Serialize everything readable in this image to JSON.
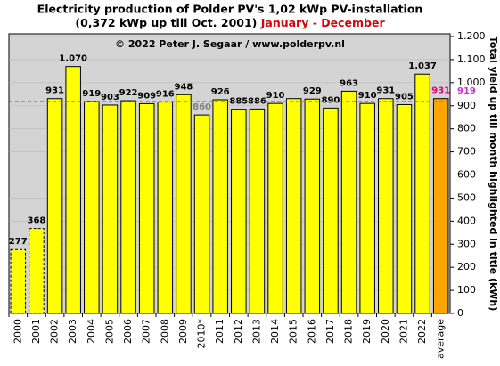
{
  "chart_data": {
    "type": "bar",
    "title": "Electricity production  of Polder PV's 1,02 kWp PV-installation",
    "subtitle": "(0,372 kWp up till Oct. 2001)",
    "period": "January - December",
    "copyright": "© 2022 Peter J. Segaar / www.polderpv.nl",
    "y_axis_label": "Total yield up till month highlighted in title (kWh)",
    "categories": [
      "2000",
      "2001",
      "2002",
      "2003",
      "2004",
      "2005",
      "2006",
      "2007",
      "2008",
      "2009",
      "2010*",
      "2011",
      "2012",
      "2013",
      "2014",
      "2015",
      "2016",
      "2017",
      "2018",
      "2019",
      "2020",
      "2021",
      "2022",
      "average"
    ],
    "values": [
      277,
      368,
      931,
      1070,
      919,
      903,
      922,
      909,
      916,
      948,
      860,
      926,
      885,
      886,
      910,
      931,
      929,
      890,
      963,
      910,
      931,
      905,
      1037,
      931
    ],
    "value_labels": [
      "277",
      "368",
      "931",
      "1.070",
      "919",
      "903",
      "922",
      "909",
      "916",
      "948",
      "860",
      "926",
      "885",
      "886",
      "910",
      null,
      "929",
      "890",
      "963",
      "910",
      "931",
      "905",
      "1.037",
      "931"
    ],
    "value_label_colors": [
      "#000",
      "#000",
      "#000",
      "#000",
      "#000",
      "#000",
      "#000",
      "#000",
      "#000",
      "#000",
      "#808080",
      "#000",
      "#000",
      "#000",
      "#000",
      "#000",
      "#000",
      "#000",
      "#000",
      "#000",
      "#000",
      "#000",
      "#000",
      "#e0007a"
    ],
    "colors": [
      "#ffff00",
      "#ffff00",
      "#ffff00",
      "#ffff00",
      "#ffff00",
      "#ffff00",
      "#ffff00",
      "#ffff00",
      "#ffff00",
      "#ffff00",
      "#ffff00",
      "#ffff00",
      "#ffff00",
      "#ffff00",
      "#ffff00",
      "#ffff00",
      "#ffff00",
      "#ffff00",
      "#ffff00",
      "#ffff00",
      "#ffff00",
      "#ffff00",
      "#ffff00",
      "#ffa500"
    ],
    "bar_styles": [
      "dashed",
      "dashed",
      "solid",
      "solid",
      "solid",
      "solid",
      "solid",
      "solid",
      "solid",
      "solid",
      "solid",
      "solid",
      "solid",
      "solid",
      "solid",
      "solid",
      "solid",
      "solid",
      "solid",
      "solid",
      "solid",
      "solid",
      "solid",
      "solid"
    ],
    "reference_line": {
      "value": 919,
      "color": "#cc33cc"
    },
    "ylim": [
      0,
      1200
    ],
    "yticks": [
      0,
      100,
      200,
      300,
      400,
      500,
      600,
      700,
      800,
      900,
      {
        "value": 1000,
        "label": "1.000"
      },
      {
        "value": 1100,
        "label": "1.100"
      },
      {
        "value": 1200,
        "label": "1.200"
      }
    ],
    "grid": true,
    "plot_background": "#d4d4d4"
  }
}
